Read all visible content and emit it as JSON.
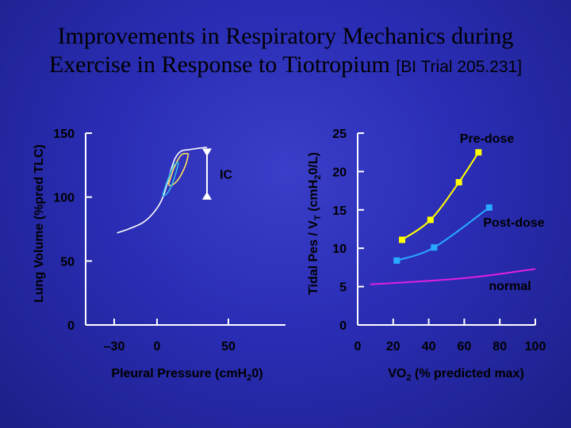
{
  "title": {
    "line1": "Improvements in Respiratory Mechanics during",
    "line2": "Exercise in Response to Tiotropium",
    "trial": "[BI Trial 205.231]"
  },
  "colors": {
    "background": "#2a2db4",
    "axis": "#ffffff",
    "text": "#000000",
    "white_curve": "#ffffff",
    "pre_dose": "#ffff00",
    "post_dose": "#29aaff",
    "normal": "#e020e0",
    "loop_pre": "#ffe060",
    "loop_post": "#30b8e8"
  },
  "chart_data": [
    {
      "type": "line",
      "xlabel": "Pleural Pressure (cmH",
      "xlabel_sub": "2",
      "xlabel_tail": "0)",
      "ylabel": "Lung Volume (%pred TLC)",
      "xlim": [
        -50,
        90
      ],
      "ylim": [
        0,
        150
      ],
      "x_ticks": [
        -30,
        0,
        50
      ],
      "x_tick_labels": [
        "–30",
        "0",
        "50"
      ],
      "y_ticks": [
        0,
        50,
        100,
        150
      ],
      "y_tick_labels": [
        "0",
        "50",
        "100",
        "150"
      ],
      "annotation": "IC",
      "series": [
        {
          "style": "pv-curve",
          "x": [
            -28,
            -20,
            -10,
            -3,
            3,
            7,
            10,
            13,
            17,
            22,
            28,
            35
          ],
          "y": [
            72,
            75,
            80,
            87,
            97,
            110,
            122,
            131,
            136,
            137,
            138,
            139
          ]
        }
      ],
      "loops": [
        {
          "style": "pre",
          "inspiratory_x": [
            8,
            12,
            17,
            22
          ],
          "inspiratory_y": [
            110,
            123,
            133,
            134
          ],
          "expiratory_x": [
            22,
            20,
            15,
            10,
            8
          ],
          "expiratory_y": [
            134,
            125,
            114,
            109,
            110
          ]
        },
        {
          "style": "post",
          "inspiratory_x": [
            4,
            8,
            12,
            15
          ],
          "inspiratory_y": [
            102,
            115,
            125,
            127
          ],
          "expiratory_x": [
            15,
            13,
            9,
            5,
            4
          ],
          "expiratory_y": [
            127,
            118,
            106,
            101,
            102
          ]
        }
      ],
      "ic_arrow": {
        "x": 35,
        "y_top": 138,
        "y_bottom": 98
      }
    },
    {
      "type": "line",
      "xlabel": "VO",
      "xlabel_sub": "2",
      "xlabel_tail": " (% predicted max)",
      "ylabel": "Tidal  Pes / V",
      "ylabel_sub": "T",
      "ylabel_tail": "  (cmH",
      "ylabel_sub2": "2",
      "ylabel_tail2": "0/L)",
      "xlim": [
        0,
        100
      ],
      "ylim": [
        0,
        25
      ],
      "x_ticks": [
        0,
        20,
        40,
        60,
        80,
        100
      ],
      "y_ticks": [
        0,
        5,
        10,
        15,
        20,
        25
      ],
      "series": [
        {
          "name": "Pre-dose",
          "style": "pre",
          "x": [
            25,
            41,
            57,
            68
          ],
          "y": [
            11.1,
            13.7,
            18.6,
            22.5
          ]
        },
        {
          "name": "Post-dose",
          "style": "post",
          "x": [
            22,
            43,
            74
          ],
          "y": [
            8.4,
            10.1,
            15.3
          ]
        },
        {
          "name": "normal",
          "style": "normal",
          "x": [
            7,
            30,
            55,
            75,
            100
          ],
          "y": [
            5.3,
            5.6,
            6.0,
            6.5,
            7.3
          ]
        }
      ]
    }
  ]
}
